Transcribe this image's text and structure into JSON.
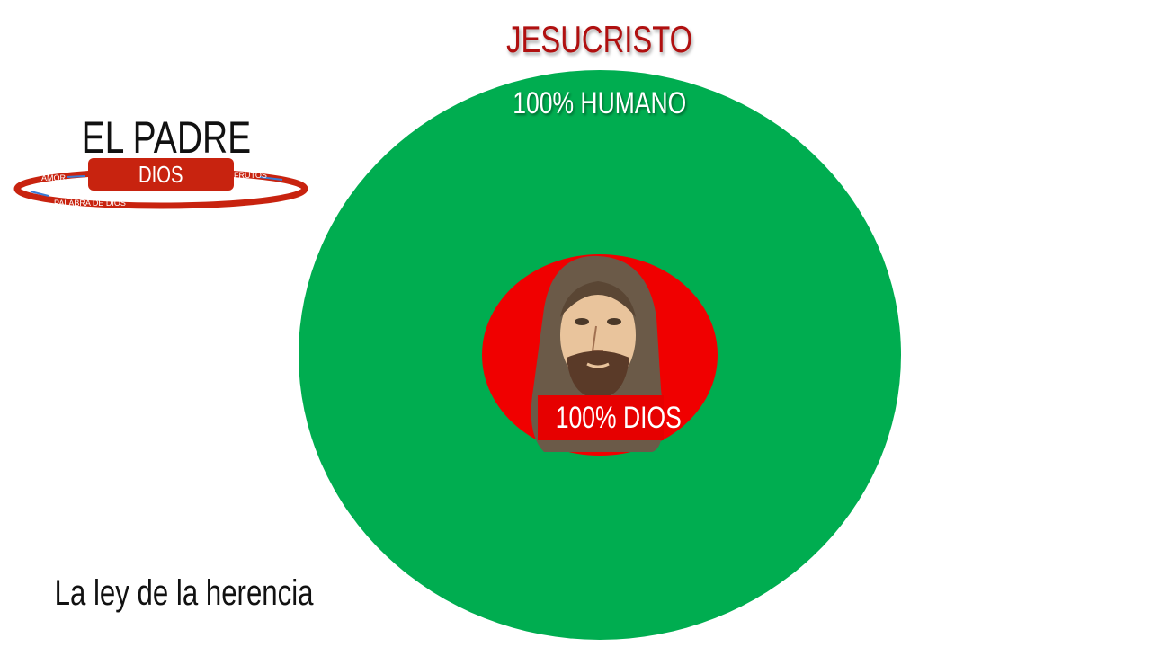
{
  "title": "JESUCRISTO",
  "outer_circle": {
    "label": "100% HUMANO",
    "color": "#00ad50"
  },
  "inner_circle": {
    "label": "100% DIOS",
    "color": "#f00000",
    "image": "jesus-face-watercolor"
  },
  "logo": {
    "heading": "EL PADRE",
    "center_label": "DIOS",
    "ring_labels": {
      "left": "AMOR",
      "right": "FRUTOS",
      "bottom": "PALABRA DE DIOS"
    },
    "color": "#c8230f"
  },
  "footer": "La ley de la herencia",
  "colors": {
    "title": "#b01010"
  }
}
